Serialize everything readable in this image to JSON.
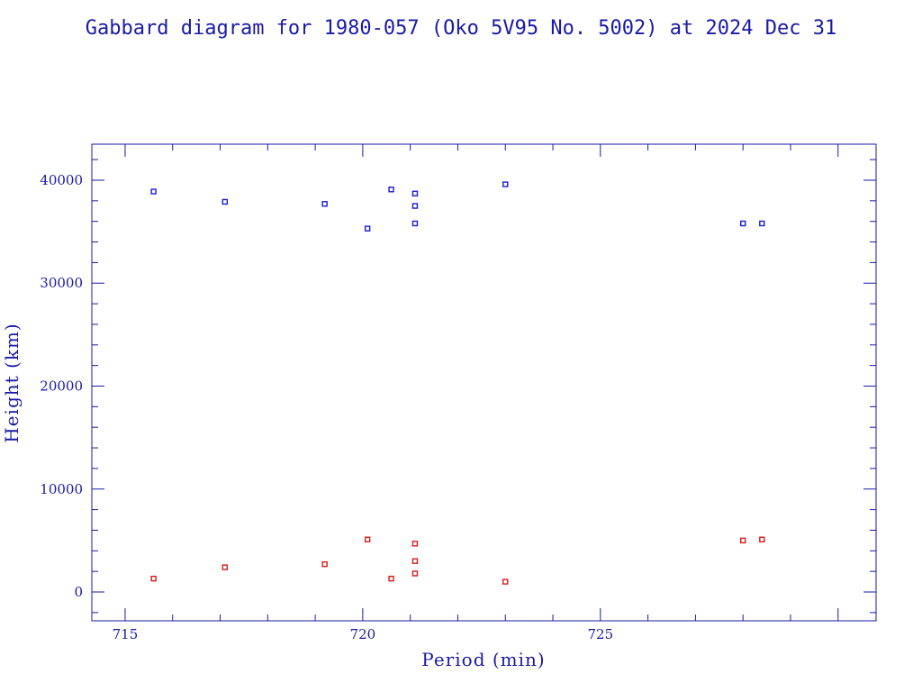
{
  "chart_data": {
    "type": "scatter",
    "title": "Gabbard diagram for 1980-057 (Oko 5V95 No. 5002) at 2024 Dec 31",
    "xlabel": "Period (min)",
    "ylabel": "Height (km)",
    "xlim": [
      714.3,
      730.8
    ],
    "ylim": [
      -2800,
      43500
    ],
    "x_ticks": [
      715,
      720,
      725
    ],
    "x_tick_labels": [
      "715",
      "720",
      "725"
    ],
    "y_ticks": [
      0,
      10000,
      20000,
      30000,
      40000
    ],
    "y_tick_labels": [
      "0",
      "10000",
      "20000",
      "30000",
      "40000"
    ],
    "grid": false,
    "series": [
      {
        "color": "#1a1ad9",
        "points": [
          {
            "x": 715.6,
            "y": 38900
          },
          {
            "x": 717.1,
            "y": 37900
          },
          {
            "x": 719.2,
            "y": 37700
          },
          {
            "x": 720.1,
            "y": 35300
          },
          {
            "x": 720.6,
            "y": 39100
          },
          {
            "x": 721.1,
            "y": 38700
          },
          {
            "x": 721.1,
            "y": 37500
          },
          {
            "x": 721.1,
            "y": 35800
          },
          {
            "x": 723.0,
            "y": 39600
          },
          {
            "x": 728.0,
            "y": 35800
          },
          {
            "x": 728.4,
            "y": 35800
          }
        ]
      },
      {
        "color": "#d91a1a",
        "points": [
          {
            "x": 715.6,
            "y": 1300
          },
          {
            "x": 717.1,
            "y": 2400
          },
          {
            "x": 719.2,
            "y": 2700
          },
          {
            "x": 720.1,
            "y": 5100
          },
          {
            "x": 720.6,
            "y": 1300
          },
          {
            "x": 721.1,
            "y": 4700
          },
          {
            "x": 721.1,
            "y": 3000
          },
          {
            "x": 721.1,
            "y": 1800
          },
          {
            "x": 723.0,
            "y": 1000
          },
          {
            "x": 728.0,
            "y": 5000
          },
          {
            "x": 728.4,
            "y": 5100
          }
        ]
      }
    ]
  }
}
